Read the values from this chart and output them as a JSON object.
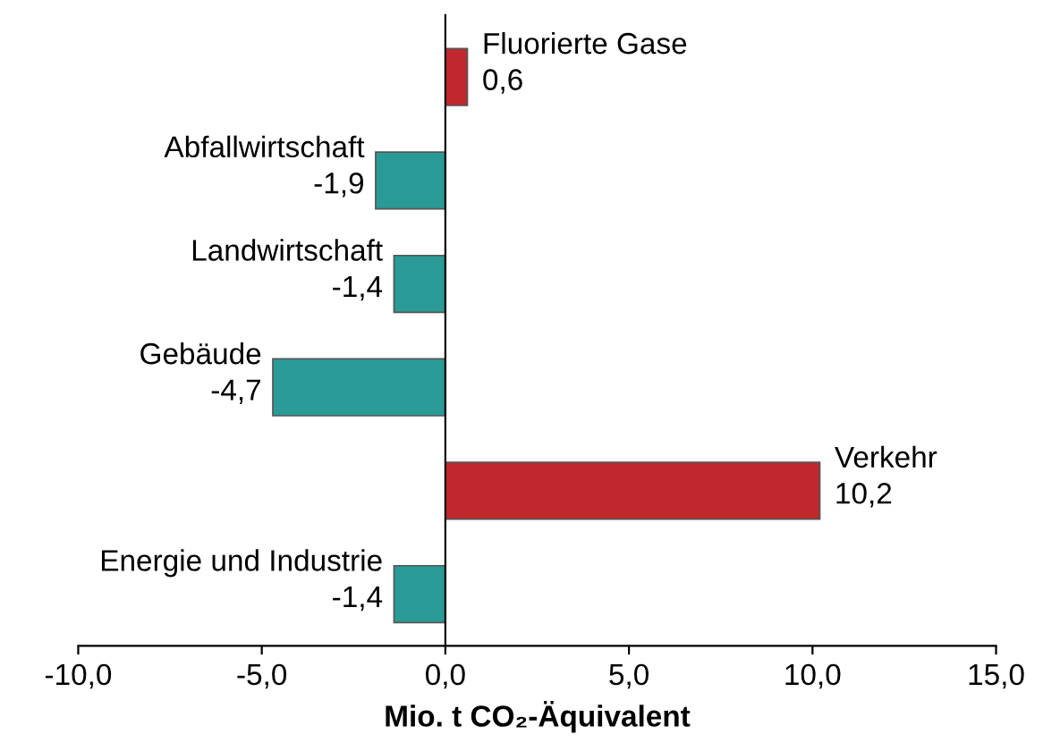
{
  "chart_data": {
    "type": "bar",
    "orientation": "horizontal",
    "xlabel": "Mio. t CO₂-Äquivalent",
    "categories": [
      "Fluorierte Gase",
      "Abfallwirtschaft",
      "Landwirtschaft",
      "Gebäude",
      "Verkehr",
      "Energie und Industrie"
    ],
    "values": [
      0.6,
      -1.9,
      -1.4,
      -4.7,
      10.2,
      -1.4
    ],
    "value_labels": [
      "0,6",
      "-1,9",
      "-1,4",
      "-4,7",
      "10,2",
      "-1,4"
    ],
    "colors": [
      "#c0282d",
      "#2a9a96",
      "#2a9a96",
      "#2a9a96",
      "#c0282d",
      "#2a9a96"
    ],
    "xlim": [
      -10,
      15
    ],
    "xticks": [
      {
        "value": -10,
        "label": "-10,0"
      },
      {
        "value": -5,
        "label": "-5,0"
      },
      {
        "value": 0,
        "label": "0,0"
      },
      {
        "value": 5,
        "label": "5,0"
      },
      {
        "value": 10,
        "label": "10,0"
      },
      {
        "value": 15,
        "label": "15,0"
      }
    ],
    "grid": false,
    "legend": false
  }
}
